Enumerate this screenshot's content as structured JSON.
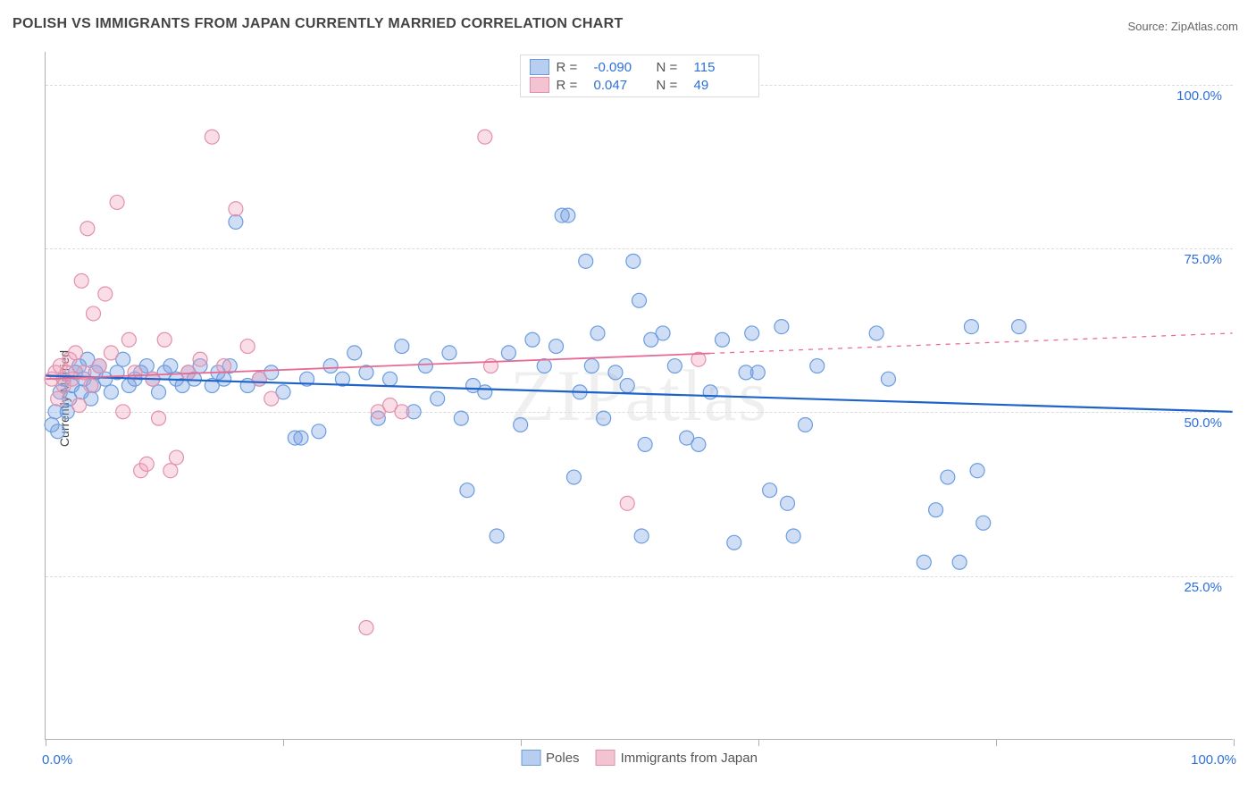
{
  "title": "POLISH VS IMMIGRANTS FROM JAPAN CURRENTLY MARRIED CORRELATION CHART",
  "source_label": "Source: ZipAtlas.com",
  "watermark": "ZIPatlas",
  "ylabel": "Currently Married",
  "chart": {
    "type": "scatter",
    "xlim": [
      0,
      100
    ],
    "ylim": [
      0,
      105
    ],
    "x_ticks": [
      0,
      20,
      40,
      60,
      80,
      100
    ],
    "x_tick_labels_shown": {
      "0": "0.0%",
      "100": "100.0%"
    },
    "y_gridlines": [
      25,
      50,
      75,
      100
    ],
    "y_tick_labels": {
      "25": "25.0%",
      "50": "50.0%",
      "75": "75.0%",
      "100": "100.0%"
    },
    "axis_label_color": "#2e6fd8",
    "grid_color": "#dcdcdc",
    "background_color": "#ffffff",
    "marker_radius": 8,
    "marker_stroke_width": 1.2,
    "series": [
      {
        "name": "Poles",
        "fill": "rgba(120,160,225,0.35)",
        "stroke": "#6a9de0",
        "swatch_fill": "#b8cef0",
        "swatch_border": "#6a9de0",
        "R": "-0.090",
        "N": "115",
        "trend": {
          "y_at_x0": 55.5,
          "y_at_x100": 50.0,
          "color": "#1e63c8",
          "width": 2.2,
          "solid_to_x": 100
        },
        "points": [
          [
            0.5,
            48
          ],
          [
            0.8,
            50
          ],
          [
            1.0,
            47
          ],
          [
            1.2,
            53
          ],
          [
            1.5,
            55
          ],
          [
            1.8,
            50
          ],
          [
            2.0,
            52
          ],
          [
            2.2,
            54
          ],
          [
            2.5,
            56
          ],
          [
            2.8,
            57
          ],
          [
            3.0,
            53
          ],
          [
            3.2,
            55
          ],
          [
            3.5,
            58
          ],
          [
            3.8,
            52
          ],
          [
            4.0,
            54
          ],
          [
            4.2,
            56
          ],
          [
            4.5,
            57
          ],
          [
            5.0,
            55
          ],
          [
            5.5,
            53
          ],
          [
            6.0,
            56
          ],
          [
            6.5,
            58
          ],
          [
            7.0,
            54
          ],
          [
            7.5,
            55
          ],
          [
            8.0,
            56
          ],
          [
            8.5,
            57
          ],
          [
            9.0,
            55
          ],
          [
            9.5,
            53
          ],
          [
            10.0,
            56
          ],
          [
            10.5,
            57
          ],
          [
            11.0,
            55
          ],
          [
            11.5,
            54
          ],
          [
            12.0,
            56
          ],
          [
            12.5,
            55
          ],
          [
            13.0,
            57
          ],
          [
            14.0,
            54
          ],
          [
            14.5,
            56
          ],
          [
            15.0,
            55
          ],
          [
            15.5,
            57
          ],
          [
            16.0,
            79
          ],
          [
            17.0,
            54
          ],
          [
            18.0,
            55
          ],
          [
            19.0,
            56
          ],
          [
            20.0,
            53
          ],
          [
            21.0,
            46
          ],
          [
            21.5,
            46
          ],
          [
            22.0,
            55
          ],
          [
            23.0,
            47
          ],
          [
            24.0,
            57
          ],
          [
            25.0,
            55
          ],
          [
            26.0,
            59
          ],
          [
            27.0,
            56
          ],
          [
            28.0,
            49
          ],
          [
            29.0,
            55
          ],
          [
            30.0,
            60
          ],
          [
            31.0,
            50
          ],
          [
            32.0,
            57
          ],
          [
            33.0,
            52
          ],
          [
            34.0,
            59
          ],
          [
            35.0,
            49
          ],
          [
            35.5,
            38
          ],
          [
            36.0,
            54
          ],
          [
            37.0,
            53
          ],
          [
            38.0,
            31
          ],
          [
            39.0,
            59
          ],
          [
            40.0,
            48
          ],
          [
            41.0,
            61
          ],
          [
            42.0,
            57
          ],
          [
            43.0,
            60
          ],
          [
            43.5,
            80
          ],
          [
            44.0,
            80
          ],
          [
            44.5,
            40
          ],
          [
            45.0,
            53
          ],
          [
            45.5,
            73
          ],
          [
            46.0,
            57
          ],
          [
            46.5,
            62
          ],
          [
            47.0,
            49
          ],
          [
            48.0,
            56
          ],
          [
            49.0,
            54
          ],
          [
            49.5,
            73
          ],
          [
            50.0,
            67
          ],
          [
            50.2,
            31
          ],
          [
            50.5,
            45
          ],
          [
            51.0,
            61
          ],
          [
            52.0,
            62
          ],
          [
            53.0,
            57
          ],
          [
            54.0,
            46
          ],
          [
            55.0,
            45
          ],
          [
            56.0,
            53
          ],
          [
            57.0,
            61
          ],
          [
            58.0,
            30
          ],
          [
            59.0,
            56
          ],
          [
            59.5,
            62
          ],
          [
            60.0,
            56
          ],
          [
            61.0,
            38
          ],
          [
            62.0,
            63
          ],
          [
            62.5,
            36
          ],
          [
            63.0,
            31
          ],
          [
            64.0,
            48
          ],
          [
            65.0,
            57
          ],
          [
            70.0,
            62
          ],
          [
            71.0,
            55
          ],
          [
            74.0,
            27
          ],
          [
            75.0,
            35
          ],
          [
            76.0,
            40
          ],
          [
            77.0,
            27
          ],
          [
            78.0,
            63
          ],
          [
            82.0,
            63
          ],
          [
            78.5,
            41
          ],
          [
            79.0,
            33
          ]
        ]
      },
      {
        "name": "Immigrants from Japan",
        "fill": "rgba(240,160,185,0.35)",
        "stroke": "#e290ab",
        "swatch_fill": "#f4c3d1",
        "swatch_border": "#e290ab",
        "R": "0.047",
        "N": "49",
        "trend": {
          "y_at_x0": 55.0,
          "y_at_x100": 62.0,
          "color": "#e86a92",
          "width": 1.8,
          "solid_to_x": 56
        },
        "points": [
          [
            0.5,
            55
          ],
          [
            0.8,
            56
          ],
          [
            1.0,
            52
          ],
          [
            1.2,
            57
          ],
          [
            1.5,
            54
          ],
          [
            1.8,
            56
          ],
          [
            2.0,
            58
          ],
          [
            2.2,
            55
          ],
          [
            2.5,
            59
          ],
          [
            2.8,
            51
          ],
          [
            3.0,
            70
          ],
          [
            3.2,
            56
          ],
          [
            3.5,
            78
          ],
          [
            3.8,
            54
          ],
          [
            4.0,
            65
          ],
          [
            4.5,
            57
          ],
          [
            5.0,
            68
          ],
          [
            5.5,
            59
          ],
          [
            6.0,
            82
          ],
          [
            6.5,
            50
          ],
          [
            7.0,
            61
          ],
          [
            7.5,
            56
          ],
          [
            8.0,
            41
          ],
          [
            8.5,
            42
          ],
          [
            9.0,
            55
          ],
          [
            9.5,
            49
          ],
          [
            10.0,
            61
          ],
          [
            10.5,
            41
          ],
          [
            11.0,
            43
          ],
          [
            12.0,
            56
          ],
          [
            13.0,
            58
          ],
          [
            14.0,
            92
          ],
          [
            15.0,
            57
          ],
          [
            16.0,
            81
          ],
          [
            17.0,
            60
          ],
          [
            18.0,
            55
          ],
          [
            19.0,
            52
          ],
          [
            27.0,
            17
          ],
          [
            28.0,
            50
          ],
          [
            29.0,
            51
          ],
          [
            30.0,
            50
          ],
          [
            37.0,
            92
          ],
          [
            37.5,
            57
          ],
          [
            49.0,
            36
          ],
          [
            55.0,
            58
          ]
        ]
      }
    ]
  },
  "legend_top_labels": {
    "R": "R =",
    "N": "N ="
  },
  "legend_bottom": [
    {
      "label": "Poles",
      "fill": "#b8cef0",
      "border": "#6a9de0"
    },
    {
      "label": "Immigrants from Japan",
      "fill": "#f4c3d1",
      "border": "#e290ab"
    }
  ]
}
